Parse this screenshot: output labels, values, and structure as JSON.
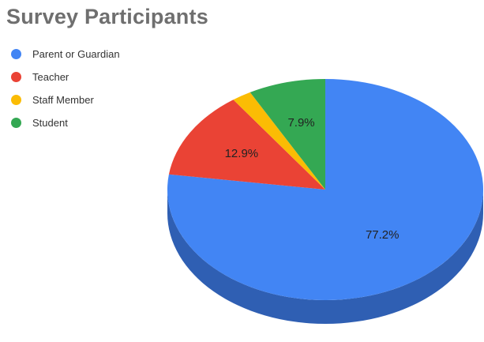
{
  "chart_data": {
    "type": "pie",
    "title": "Survey Participants",
    "legend_position": "top-left",
    "three_d": true,
    "slices": [
      {
        "label": "Parent or Guardian",
        "value": 77.2,
        "display": "77.2%",
        "color": "#4285f4",
        "shade": "#2f5fb3"
      },
      {
        "label": "Teacher",
        "value": 12.9,
        "display": "12.9%",
        "color": "#ea4335",
        "shade": "#a93226"
      },
      {
        "label": "Staff Member",
        "value": 2.0,
        "display": "",
        "color": "#fbbc04",
        "shade": "#b78a03"
      },
      {
        "label": "Student",
        "value": 7.9,
        "display": "7.9%",
        "color": "#34a853",
        "shade": "#257a3c"
      }
    ]
  }
}
